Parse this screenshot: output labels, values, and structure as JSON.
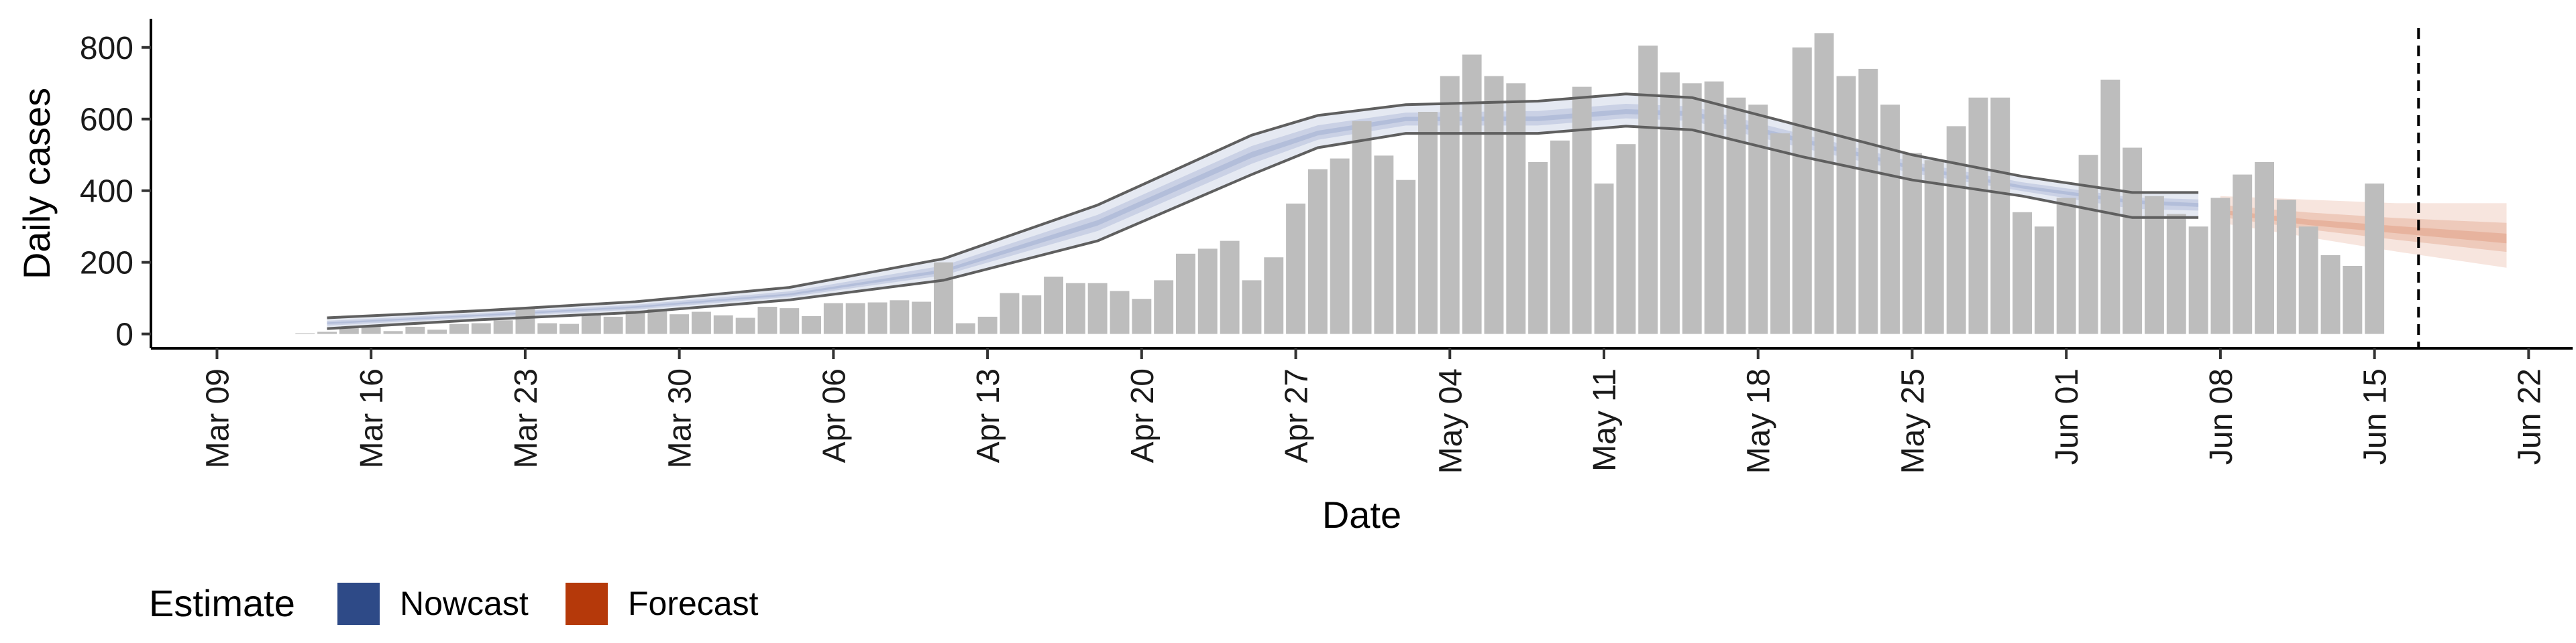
{
  "chart_data": {
    "type": "bar",
    "xlabel": "Date",
    "ylabel": "Daily cases",
    "ylim": [
      -40,
      880
    ],
    "y_ticks": [
      0,
      200,
      400,
      600,
      800
    ],
    "x_start": "Mar 06",
    "x_end": "Jun 24",
    "x_ticks": [
      "Mar 09",
      "Mar 16",
      "Mar 23",
      "Mar 30",
      "Apr 06",
      "Apr 13",
      "Apr 20",
      "Apr 27",
      "May 04",
      "May 11",
      "May 18",
      "May 25",
      "Jun 01",
      "Jun 08",
      "Jun 15",
      "Jun 22"
    ],
    "grid": false,
    "legend_position": "bottom-left",
    "reference_line": "Jun 17",
    "bar_color": "#bdbdbd",
    "bar_first_date": "Mar 13",
    "bars": [
      2,
      6,
      16,
      22,
      8,
      20,
      12,
      28,
      30,
      38,
      72,
      30,
      28,
      55,
      48,
      65,
      70,
      55,
      62,
      52,
      45,
      76,
      72,
      50,
      86,
      86,
      88,
      94,
      90,
      200,
      30,
      48,
      114,
      108,
      160,
      142,
      142,
      120,
      98,
      150,
      224,
      238,
      260,
      150,
      214,
      364,
      460,
      490,
      594,
      498,
      430,
      620,
      720,
      780,
      720,
      700,
      480,
      540,
      690,
      420,
      530,
      805,
      730,
      700,
      705,
      660,
      640,
      560,
      800,
      840,
      720,
      740,
      640,
      505,
      485,
      580,
      660,
      660,
      340,
      300,
      380,
      500,
      710,
      520,
      385,
      335,
      300,
      380,
      445,
      480,
      375,
      300,
      220,
      190,
      420
    ],
    "legend": {
      "title": "Estimate",
      "items": [
        {
          "label": "Nowcast",
          "color": "#2e4a87"
        },
        {
          "label": "Forecast",
          "color": "#b5390a"
        }
      ]
    },
    "series": [
      {
        "name": "Nowcast",
        "color": "#8a9cc6",
        "start": "Mar 14",
        "end": "Jun 07",
        "x": [
          "Mar 14",
          "Mar 21",
          "Mar 28",
          "Apr 04",
          "Apr 11",
          "Apr 18",
          "Apr 25",
          "Apr 28",
          "May 02",
          "May 08",
          "May 12",
          "May 15",
          "May 20",
          "May 25",
          "May 30",
          "Jun 04",
          "Jun 07"
        ],
        "median": [
          30,
          52,
          75,
          110,
          175,
          310,
          500,
          560,
          600,
          600,
          620,
          615,
          540,
          465,
          410,
          370,
          360
        ],
        "outer_lower": [
          15,
          40,
          60,
          95,
          150,
          260,
          445,
          520,
          560,
          560,
          580,
          570,
          495,
          430,
          385,
          325,
          325
        ],
        "outer_upper": [
          45,
          65,
          90,
          130,
          210,
          360,
          555,
          610,
          640,
          650,
          670,
          660,
          580,
          500,
          440,
          395,
          395
        ]
      },
      {
        "name": "Forecast",
        "color": "#d98a6a",
        "start": "Jun 08",
        "end": "Jun 21",
        "x": [
          "Jun 08",
          "Jun 12",
          "Jun 16",
          "Jun 21"
        ],
        "median": [
          340,
          310,
          290,
          265
        ],
        "outer_lower": [
          310,
          270,
          230,
          185
        ],
        "outer_upper": [
          385,
          375,
          365,
          365
        ]
      }
    ]
  }
}
